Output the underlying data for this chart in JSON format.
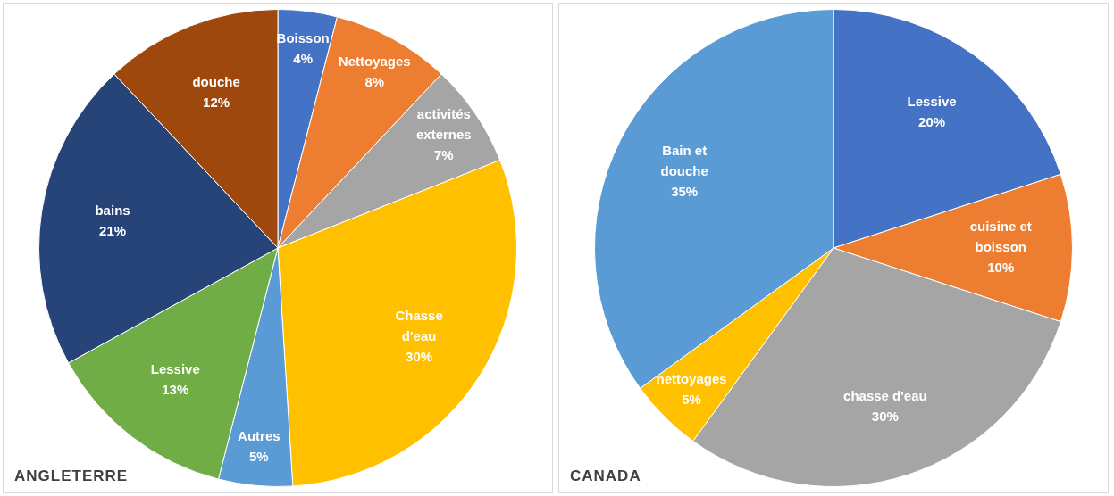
{
  "chart_data": [
    {
      "type": "pie",
      "title": "ANGLETERRE",
      "categories": [
        "Boisson",
        "Nettoyages",
        "activités externes",
        "Chasse d'eau",
        "Autres",
        "Lessive",
        "bains",
        "douche"
      ],
      "values": [
        4,
        8,
        7,
        30,
        5,
        13,
        21,
        12
      ],
      "value_labels": [
        "4%",
        "8%",
        "7%",
        "30%",
        "5%",
        "13%",
        "21%",
        "12%"
      ],
      "colors": [
        "#4472c4",
        "#ed7d31",
        "#a5a5a5",
        "#ffc000",
        "#5b9bd5",
        "#70ad47",
        "#264478",
        "#9e480e"
      ],
      "legend": false
    },
    {
      "type": "pie",
      "title": "CANADA",
      "categories": [
        "Lessive",
        "cuisine et boisson",
        "chasse d'eau",
        "nettoyages",
        "Bain et douche"
      ],
      "values": [
        20,
        10,
        30,
        5,
        35
      ],
      "value_labels": [
        "20%",
        "10%",
        "30%",
        "5%",
        "35%"
      ],
      "colors": [
        "#4472c4",
        "#ed7d31",
        "#a5a5a5",
        "#ffc000",
        "#5b9bd5"
      ],
      "legend": false
    }
  ]
}
